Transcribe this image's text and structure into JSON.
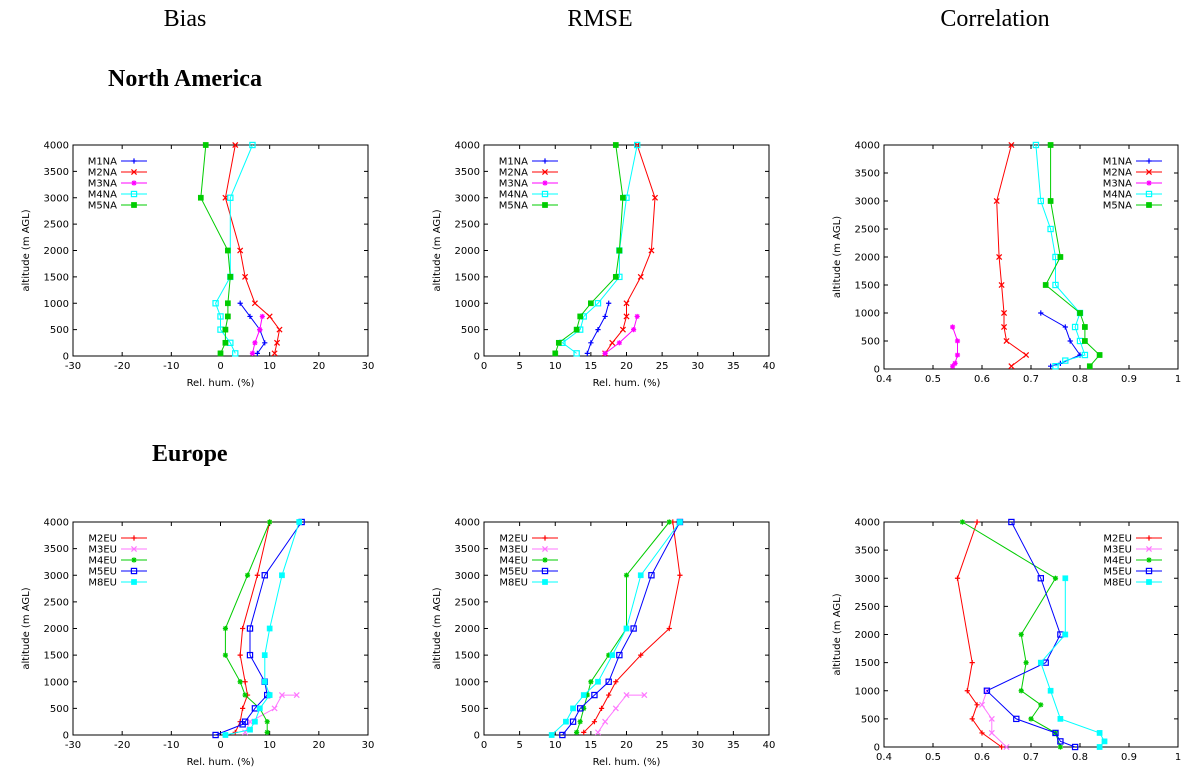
{
  "headers": [
    "Bias",
    "RMSE",
    "Correlation"
  ],
  "regions": [
    "North America",
    "Europe"
  ],
  "chart_data": [
    {
      "type": "line",
      "region": "North America",
      "metric": "Bias",
      "xlabel": "Rel. hum. (%)",
      "ylabel": "altitude (m AGL)",
      "xlim": [
        -30,
        30
      ],
      "ylim": [
        0,
        4000
      ],
      "xticks": [
        -30,
        -20,
        -10,
        0,
        10,
        20,
        30
      ],
      "yticks": [
        0,
        500,
        1000,
        1500,
        2000,
        2500,
        3000,
        3500,
        4000
      ],
      "legend": "top-left",
      "series": [
        {
          "name": "M1NA",
          "color": "#0000ff",
          "marker": "plus",
          "x": [
            7.5,
            9,
            8,
            6,
            4
          ],
          "y": [
            50,
            250,
            500,
            750,
            1000
          ]
        },
        {
          "name": "M2NA",
          "color": "#ff0000",
          "marker": "x",
          "x": [
            11,
            11.5,
            12,
            10,
            7,
            5,
            4,
            1,
            3
          ],
          "y": [
            50,
            250,
            500,
            750,
            1000,
            1500,
            2000,
            3000,
            4000
          ]
        },
        {
          "name": "M3NA",
          "color": "#ff00ff",
          "marker": "star",
          "x": [
            6.5,
            7,
            8,
            8.5
          ],
          "y": [
            50,
            250,
            500,
            750
          ]
        },
        {
          "name": "M4NA",
          "color": "#00ffff",
          "marker": "square",
          "x": [
            3,
            2,
            0,
            0,
            -1,
            2,
            2,
            6.5
          ],
          "y": [
            50,
            250,
            500,
            750,
            1000,
            1500,
            3000,
            4000
          ]
        },
        {
          "name": "M5NA",
          "color": "#00cc00",
          "marker": "filled-square",
          "x": [
            0,
            1,
            1,
            1.5,
            1.5,
            2,
            1.5,
            -4,
            -3
          ],
          "y": [
            50,
            250,
            500,
            750,
            1000,
            1500,
            2000,
            3000,
            4000
          ]
        }
      ]
    },
    {
      "type": "line",
      "region": "North America",
      "metric": "RMSE",
      "xlabel": "Rel. hum. (%)",
      "ylabel": "altitude (m AGL)",
      "xlim": [
        0,
        40
      ],
      "ylim": [
        0,
        4000
      ],
      "xticks": [
        0,
        5,
        10,
        15,
        20,
        25,
        30,
        35,
        40
      ],
      "yticks": [
        0,
        500,
        1000,
        1500,
        2000,
        2500,
        3000,
        3500,
        4000
      ],
      "legend": "top-left",
      "series": [
        {
          "name": "M1NA",
          "color": "#0000ff",
          "marker": "plus",
          "x": [
            14.5,
            15,
            16,
            17,
            17.5
          ],
          "y": [
            50,
            250,
            500,
            750,
            1000
          ]
        },
        {
          "name": "M2NA",
          "color": "#ff0000",
          "marker": "x",
          "x": [
            17,
            18,
            19.5,
            20,
            20,
            22,
            23.5,
            24,
            21.5
          ],
          "y": [
            50,
            250,
            500,
            750,
            1000,
            1500,
            2000,
            3000,
            4000
          ]
        },
        {
          "name": "M3NA",
          "color": "#ff00ff",
          "marker": "star",
          "x": [
            17,
            19,
            21,
            21.5
          ],
          "y": [
            50,
            250,
            500,
            750
          ]
        },
        {
          "name": "M4NA",
          "color": "#00ffff",
          "marker": "square",
          "x": [
            13,
            11,
            13.5,
            14,
            16,
            19,
            19,
            20,
            21.5
          ],
          "y": [
            50,
            250,
            500,
            750,
            1000,
            1500,
            2000,
            3000,
            4000
          ]
        },
        {
          "name": "M5NA",
          "color": "#00cc00",
          "marker": "filled-square",
          "x": [
            10,
            10.5,
            13,
            13.5,
            15,
            18.5,
            19,
            19.5,
            18.5
          ],
          "y": [
            50,
            250,
            500,
            750,
            1000,
            1500,
            2000,
            3000,
            4000
          ]
        }
      ]
    },
    {
      "type": "line",
      "region": "North America",
      "metric": "Correlation",
      "xlabel": "",
      "ylabel": "altitude (m AGL)",
      "xlim": [
        0.4,
        1
      ],
      "ylim": [
        0,
        4000
      ],
      "xticks": [
        0.4,
        0.5,
        0.6,
        0.7,
        0.8,
        0.9,
        1
      ],
      "yticks": [
        0,
        500,
        1000,
        1500,
        2000,
        2500,
        3000,
        3500,
        4000
      ],
      "legend": "top-right",
      "series": [
        {
          "name": "M1NA",
          "color": "#0000ff",
          "marker": "plus",
          "x": [
            0.74,
            0.76,
            0.8,
            0.78,
            0.77,
            0.72
          ],
          "y": [
            50,
            100,
            250,
            500,
            750,
            1000
          ]
        },
        {
          "name": "M2NA",
          "color": "#ff0000",
          "marker": "x",
          "x": [
            0.66,
            0.69,
            0.65,
            0.645,
            0.645,
            0.64,
            0.635,
            0.63,
            0.66
          ],
          "y": [
            50,
            250,
            500,
            750,
            1000,
            1500,
            2000,
            3000,
            4000
          ]
        },
        {
          "name": "M3NA",
          "color": "#ff00ff",
          "marker": "star",
          "x": [
            0.54,
            0.545,
            0.55,
            0.55,
            0.54
          ],
          "y": [
            50,
            100,
            250,
            500,
            750
          ]
        },
        {
          "name": "M4NA",
          "color": "#00ffff",
          "marker": "square",
          "x": [
            0.75,
            0.77,
            0.81,
            0.8,
            0.79,
            0.8,
            0.75,
            0.75,
            0.74,
            0.72,
            0.71
          ],
          "y": [
            50,
            150,
            250,
            500,
            750,
            1000,
            1500,
            2000,
            2500,
            3000,
            4000
          ]
        },
        {
          "name": "M5NA",
          "color": "#00cc00",
          "marker": "filled-square",
          "x": [
            0.82,
            0.84,
            0.81,
            0.81,
            0.8,
            0.73,
            0.76,
            0.74,
            0.74
          ],
          "y": [
            50,
            250,
            500,
            750,
            1000,
            1500,
            2000,
            3000,
            4000
          ]
        }
      ]
    },
    {
      "type": "line",
      "region": "Europe",
      "metric": "Bias",
      "xlabel": "Rel. hum. (%)",
      "ylabel": "altitude (m AGL)",
      "xlim": [
        -30,
        30
      ],
      "ylim": [
        0,
        4000
      ],
      "xticks": [
        -30,
        -20,
        -10,
        0,
        10,
        20,
        30
      ],
      "yticks": [
        0,
        500,
        1000,
        1500,
        2000,
        2500,
        3000,
        3500,
        4000
      ],
      "legend": "top-left",
      "series": [
        {
          "name": "M2EU",
          "color": "#ff0000",
          "marker": "plus",
          "x": [
            3,
            4,
            4.5,
            5.5,
            5,
            4,
            4.5,
            7.5,
            10
          ],
          "y": [
            50,
            250,
            500,
            750,
            1000,
            1500,
            2000,
            3000,
            4000
          ]
        },
        {
          "name": "M3EU",
          "color": "#ff77ff",
          "marker": "x",
          "x": [
            5,
            6,
            11,
            12.5,
            15.5
          ],
          "y": [
            50,
            250,
            500,
            750,
            750
          ]
        },
        {
          "name": "M4EU",
          "color": "#00cc00",
          "marker": "star",
          "x": [
            9.5,
            9.5,
            8,
            5,
            4,
            1,
            1,
            5.5,
            10
          ],
          "y": [
            50,
            250,
            500,
            750,
            1000,
            1500,
            2000,
            3000,
            4000
          ]
        },
        {
          "name": "M5EU",
          "color": "#0000ff",
          "marker": "square",
          "x": [
            -1,
            4.5,
            5,
            7,
            9.5,
            9,
            6,
            6,
            9,
            16.5
          ],
          "y": [
            0,
            200,
            250,
            500,
            750,
            1000,
            1500,
            2000,
            3000,
            4000
          ]
        },
        {
          "name": "M8EU",
          "color": "#00ffff",
          "marker": "filled-square",
          "x": [
            1,
            6,
            7,
            8,
            10,
            9,
            9,
            10,
            12.5,
            16
          ],
          "y": [
            0,
            100,
            250,
            500,
            750,
            1000,
            1500,
            2000,
            3000,
            4000
          ]
        }
      ]
    },
    {
      "type": "line",
      "region": "Europe",
      "metric": "RMSE",
      "xlabel": "Rel. hum. (%)",
      "ylabel": "altitude (m AGL)",
      "xlim": [
        0,
        40
      ],
      "ylim": [
        0,
        4000
      ],
      "xticks": [
        0,
        5,
        10,
        15,
        20,
        25,
        30,
        35,
        40
      ],
      "yticks": [
        0,
        500,
        1000,
        1500,
        2000,
        2500,
        3000,
        3500,
        4000
      ],
      "legend": "top-left",
      "series": [
        {
          "name": "M2EU",
          "color": "#ff0000",
          "marker": "plus",
          "x": [
            14,
            15.5,
            16.5,
            17.5,
            18.5,
            22,
            26,
            27.5,
            26.5
          ],
          "y": [
            50,
            250,
            500,
            750,
            1000,
            1500,
            2000,
            3000,
            4000
          ]
        },
        {
          "name": "M3EU",
          "color": "#ff77ff",
          "marker": "x",
          "x": [
            16,
            17,
            18.5,
            20,
            22.5
          ],
          "y": [
            50,
            250,
            500,
            750,
            750
          ]
        },
        {
          "name": "M4EU",
          "color": "#00cc00",
          "marker": "star",
          "x": [
            13,
            13.5,
            14,
            14.5,
            15,
            17.5,
            20,
            20,
            26
          ],
          "y": [
            50,
            250,
            500,
            750,
            1000,
            1500,
            2000,
            3000,
            4000
          ]
        },
        {
          "name": "M5EU",
          "color": "#0000ff",
          "marker": "square",
          "x": [
            11,
            12.5,
            13.5,
            15.5,
            17.5,
            19,
            21,
            23.5,
            27.5
          ],
          "y": [
            0,
            250,
            500,
            750,
            1000,
            1500,
            2000,
            3000,
            4000
          ]
        },
        {
          "name": "M8EU",
          "color": "#00ffff",
          "marker": "filled-square",
          "x": [
            9.5,
            11.5,
            12.5,
            14,
            16,
            18,
            20,
            22,
            27.5
          ],
          "y": [
            0,
            250,
            500,
            750,
            1000,
            1500,
            2000,
            3000,
            4000
          ]
        }
      ]
    },
    {
      "type": "line",
      "region": "Europe",
      "metric": "Correlation",
      "xlabel": "",
      "ylabel": "altitude (m AGL)",
      "xlim": [
        0.4,
        1
      ],
      "ylim": [
        0,
        4000
      ],
      "xticks": [
        0.4,
        0.5,
        0.6,
        0.7,
        0.8,
        0.9,
        1
      ],
      "yticks": [
        0,
        500,
        1000,
        1500,
        2000,
        2500,
        3000,
        3500,
        4000
      ],
      "legend": "top-right",
      "series": [
        {
          "name": "M2EU",
          "color": "#ff0000",
          "marker": "plus",
          "x": [
            0.64,
            0.6,
            0.58,
            0.59,
            0.57,
            0.58,
            0.55,
            0.59
          ],
          "y": [
            0,
            250,
            500,
            750,
            1000,
            1500,
            3000,
            4000
          ]
        },
        {
          "name": "M3EU",
          "color": "#ff77ff",
          "marker": "x",
          "x": [
            0.65,
            0.62,
            0.62,
            0.6,
            0.61
          ],
          "y": [
            0,
            250,
            500,
            750,
            1000
          ]
        },
        {
          "name": "M4EU",
          "color": "#00cc00",
          "marker": "star",
          "x": [
            0.76,
            0.75,
            0.7,
            0.72,
            0.68,
            0.69,
            0.68,
            0.75,
            0.56
          ],
          "y": [
            0,
            250,
            500,
            750,
            1000,
            1500,
            2000,
            3000,
            4000
          ]
        },
        {
          "name": "M5EU",
          "color": "#0000ff",
          "marker": "square",
          "x": [
            0.79,
            0.76,
            0.75,
            0.67,
            0.61,
            0.73,
            0.76,
            0.72,
            0.66
          ],
          "y": [
            0,
            100,
            250,
            500,
            1000,
            1500,
            2000,
            3000,
            4000
          ]
        },
        {
          "name": "M8EU",
          "color": "#00ffff",
          "marker": "filled-square",
          "x": [
            0.84,
            0.85,
            0.84,
            0.76,
            0.74,
            0.72,
            0.77,
            0.77
          ],
          "y": [
            0,
            100,
            250,
            500,
            1000,
            1500,
            2000,
            3000
          ]
        }
      ]
    }
  ]
}
